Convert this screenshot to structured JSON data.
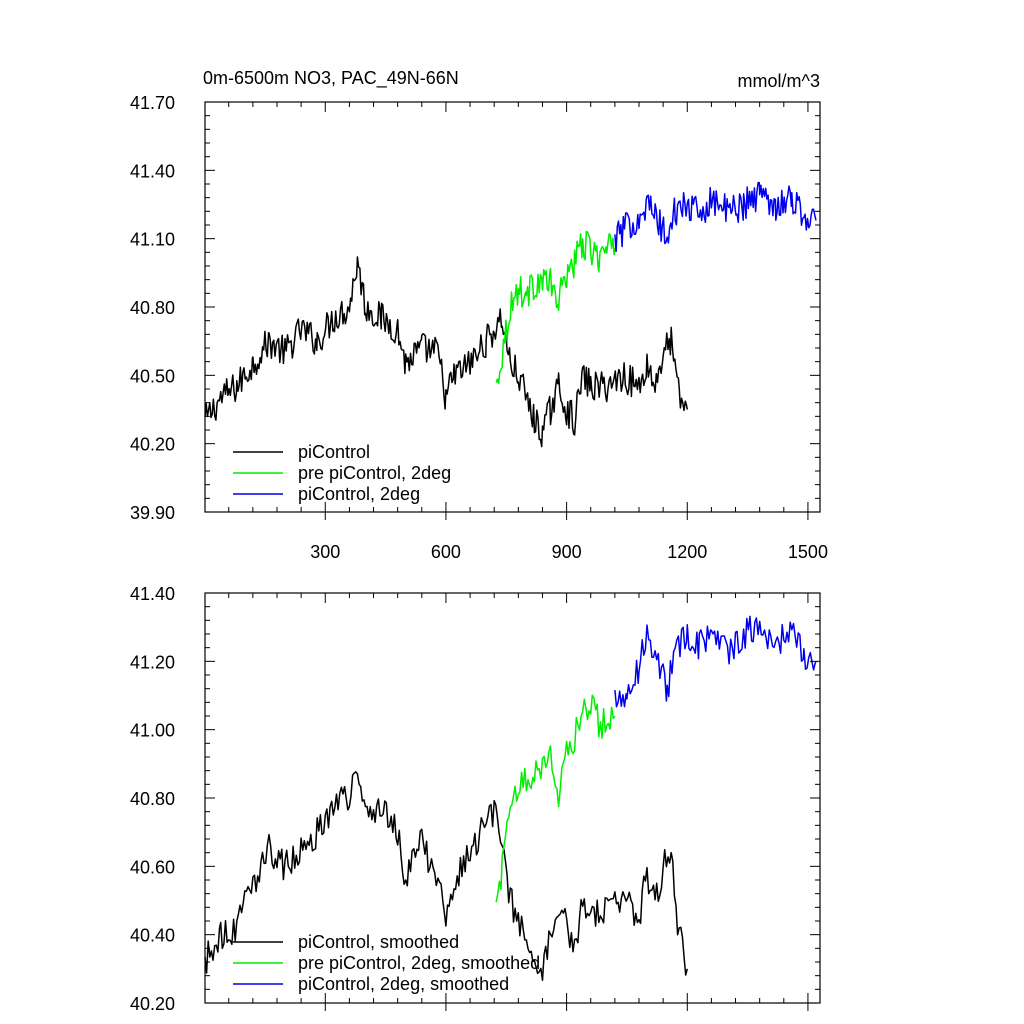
{
  "chart_data": [
    {
      "type": "line",
      "title": "0m-6500m NO3, PAC_49N-66N",
      "units": "mmol/m^3",
      "xlim": [
        1,
        1530
      ],
      "ylim": [
        39.9,
        41.7
      ],
      "x_ticks": [
        300,
        600,
        900,
        1200,
        1500
      ],
      "y_ticks": [
        39.9,
        40.2,
        40.5,
        40.8,
        41.1,
        41.4,
        41.7
      ],
      "y_tick_labels": [
        "39.90",
        "40.20",
        "40.50",
        "40.80",
        "41.10",
        "41.40",
        "41.70"
      ],
      "x_tick_labels": [
        "300",
        "600",
        "900",
        "1200",
        "1500"
      ],
      "legend_position": "bottom-left",
      "legend": [
        "piControl",
        "pre piControl, 2deg",
        "piControl, 2deg"
      ],
      "series": [
        {
          "name": "piControl",
          "color": "#000000",
          "x": [
            1,
            40,
            80,
            120,
            160,
            200,
            240,
            280,
            320,
            360,
            380,
            400,
            440,
            480,
            500,
            540,
            580,
            600,
            620,
            660,
            700,
            720,
            740,
            760,
            780,
            800,
            820,
            840,
            860,
            880,
            900,
            920,
            940,
            960,
            1000,
            1040,
            1080,
            1100,
            1120,
            1140,
            1160,
            1180,
            1200
          ],
          "values": [
            40.3,
            40.4,
            40.45,
            40.55,
            40.65,
            40.6,
            40.7,
            40.65,
            40.75,
            40.8,
            41.0,
            40.8,
            40.75,
            40.7,
            40.55,
            40.62,
            40.6,
            40.4,
            40.5,
            40.55,
            40.65,
            40.7,
            40.75,
            40.55,
            40.5,
            40.4,
            40.3,
            40.25,
            40.35,
            40.45,
            40.35,
            40.3,
            40.5,
            40.45,
            40.45,
            40.5,
            40.45,
            40.55,
            40.45,
            40.6,
            40.65,
            40.4,
            40.35
          ]
        },
        {
          "name": "pre piControl, 2deg",
          "color": "#00ee00",
          "x": [
            725,
            740,
            760,
            780,
            800,
            820,
            840,
            860,
            880,
            900,
            920,
            940,
            960,
            980,
            1000,
            1020
          ],
          "values": [
            40.45,
            40.6,
            40.8,
            40.88,
            40.85,
            40.9,
            40.92,
            40.9,
            40.82,
            40.95,
            41.0,
            41.08,
            41.05,
            41.02,
            41.05,
            41.06
          ]
        },
        {
          "name": "piControl, 2deg",
          "color": "#0000ee",
          "x": [
            1020,
            1050,
            1080,
            1100,
            1120,
            1150,
            1170,
            1200,
            1230,
            1260,
            1300,
            1340,
            1380,
            1420,
            1460,
            1490,
            1520
          ],
          "values": [
            41.1,
            41.15,
            41.2,
            41.25,
            41.2,
            41.1,
            41.22,
            41.25,
            41.2,
            41.28,
            41.22,
            41.25,
            41.3,
            41.25,
            41.28,
            41.2,
            41.18
          ]
        }
      ]
    },
    {
      "type": "line",
      "xlim": [
        1,
        1530
      ],
      "ylim": [
        40.2,
        41.4
      ],
      "x_ticks": [
        300,
        600,
        900,
        1200,
        1500
      ],
      "y_ticks": [
        40.2,
        40.4,
        40.6,
        40.8,
        41.0,
        41.2,
        41.4
      ],
      "y_tick_labels": [
        "40.20",
        "40.40",
        "40.60",
        "40.80",
        "41.00",
        "41.20",
        "41.40"
      ],
      "legend_position": "bottom-left",
      "legend": [
        "piControl, smoothed",
        "pre piControl, 2deg, smoothed",
        "piControl, 2deg, smoothed"
      ],
      "series": [
        {
          "name": "piControl, smoothed",
          "color": "#000000",
          "x": [
            1,
            40,
            80,
            100,
            120,
            160,
            200,
            240,
            280,
            320,
            360,
            380,
            400,
            440,
            480,
            500,
            540,
            560,
            580,
            600,
            620,
            660,
            700,
            720,
            740,
            760,
            780,
            800,
            820,
            840,
            860,
            880,
            900,
            920,
            940,
            960,
            1000,
            1040,
            1080,
            1100,
            1120,
            1140,
            1160,
            1180,
            1200
          ],
          "values": [
            40.32,
            40.4,
            40.42,
            40.55,
            40.55,
            40.65,
            40.6,
            40.65,
            40.7,
            40.78,
            40.8,
            40.9,
            40.75,
            40.78,
            40.7,
            40.55,
            40.7,
            40.6,
            40.55,
            40.45,
            40.55,
            40.65,
            40.72,
            40.75,
            40.68,
            40.5,
            40.45,
            40.35,
            40.28,
            40.3,
            40.4,
            40.5,
            40.42,
            40.35,
            40.5,
            40.45,
            40.48,
            40.5,
            40.45,
            40.58,
            40.5,
            40.6,
            40.62,
            40.4,
            40.3
          ]
        },
        {
          "name": "pre piControl, 2deg, smoothed",
          "color": "#00ee00",
          "x": [
            725,
            740,
            760,
            780,
            800,
            820,
            840,
            860,
            880,
            900,
            920,
            940,
            960,
            980,
            1000,
            1020
          ],
          "values": [
            40.48,
            40.6,
            40.75,
            40.85,
            40.85,
            40.88,
            40.9,
            40.92,
            40.8,
            40.95,
            40.98,
            41.05,
            41.08,
            41.02,
            41.02,
            41.04
          ]
        },
        {
          "name": "piControl, 2deg, smoothed",
          "color": "#0000ee",
          "x": [
            1020,
            1050,
            1080,
            1100,
            1120,
            1150,
            1170,
            1200,
            1230,
            1260,
            1300,
            1340,
            1380,
            1420,
            1460,
            1490,
            1520
          ],
          "values": [
            41.1,
            41.1,
            41.18,
            41.28,
            41.22,
            41.12,
            41.22,
            41.28,
            41.25,
            41.28,
            41.22,
            41.28,
            41.3,
            41.25,
            41.3,
            41.22,
            41.2
          ]
        }
      ]
    }
  ]
}
